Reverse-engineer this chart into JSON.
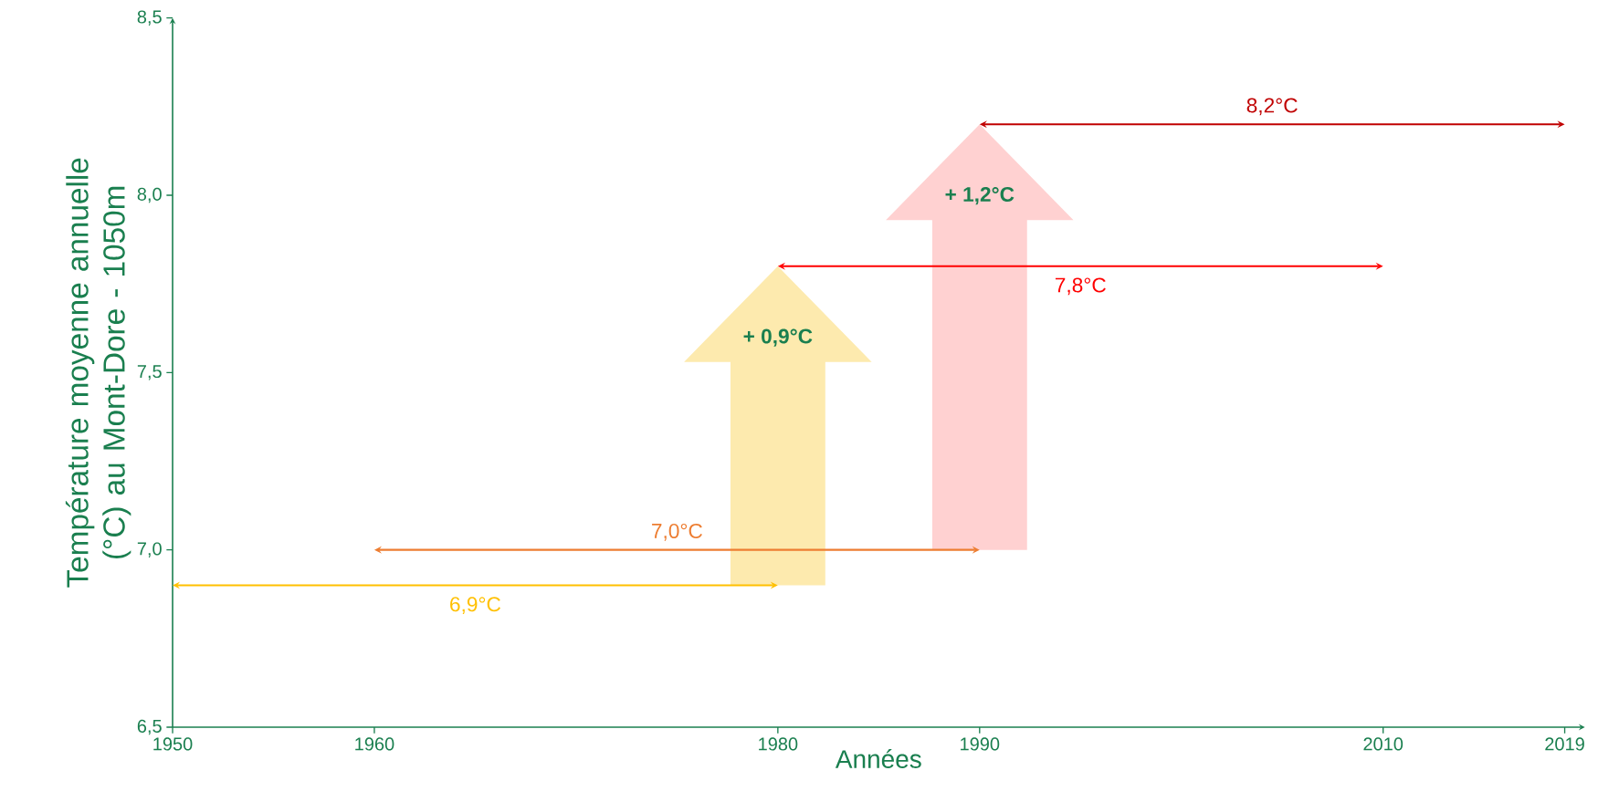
{
  "chart_data": {
    "type": "line",
    "xlabel": "Années",
    "ylabel": "Température moyenne annuelle (°C) au Mont-Dore - 1050m",
    "xlim": [
      1950,
      2020
    ],
    "ylim": [
      6.5,
      8.5
    ],
    "xticks": [
      1950,
      1960,
      1980,
      1990,
      2010,
      2019
    ],
    "yticks": [
      {
        "value": 6.5,
        "label": "6,5"
      },
      {
        "value": 7.0,
        "label": "7,0"
      },
      {
        "value": 7.5,
        "label": "7,5"
      },
      {
        "value": 8.0,
        "label": "8,0"
      },
      {
        "value": 8.5,
        "label": "8,5"
      }
    ],
    "series": [
      {
        "name": "6,9°C",
        "color": "#ffc000",
        "x": [
          1950,
          1980
        ],
        "values": [
          6.9,
          6.9
        ]
      },
      {
        "name": "7,0°C",
        "color": "#ed7d31",
        "x": [
          1960,
          1990
        ],
        "values": [
          7.0,
          7.0
        ]
      },
      {
        "name": "7,8°C",
        "color": "#ff0000",
        "x": [
          1980,
          2010
        ],
        "values": [
          7.8,
          7.8
        ]
      },
      {
        "name": "8,2°C",
        "color": "#c00000",
        "x": [
          1990,
          2019
        ],
        "values": [
          8.2,
          8.2
        ]
      }
    ],
    "annotations": [
      "**+ 0,9°C**",
      "**+ 1,2°C**"
    ],
    "marker": "cross",
    "grid": false
  }
}
